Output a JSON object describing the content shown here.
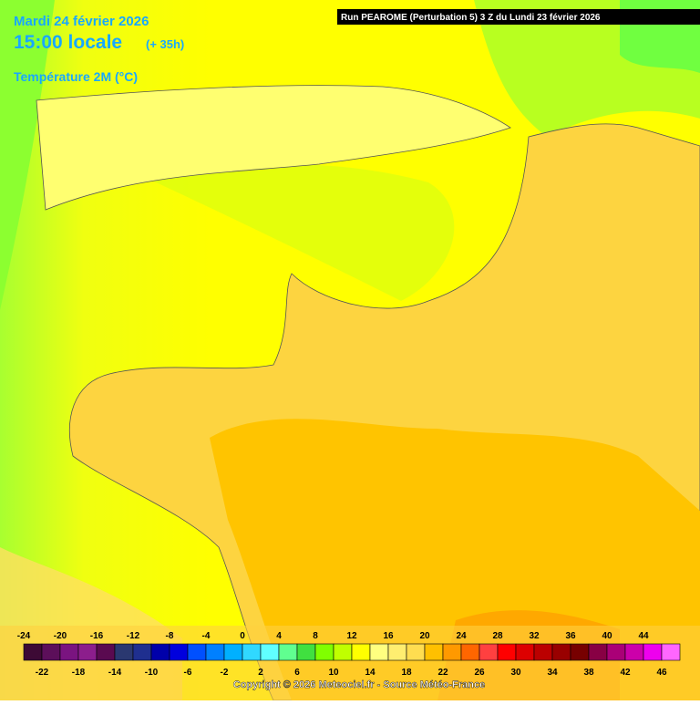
{
  "header": {
    "date": "Mardi 24 février 2026",
    "time": "15:00 locale",
    "lead": "(+ 35h)",
    "field": "Température 2M (°C)",
    "run": "Run PEAROME (Perturbation 5) 3 Z du Lundi 23 février 2026"
  },
  "legend": {
    "ticks": [
      -24,
      -22,
      -20,
      -18,
      -16,
      -14,
      -12,
      -10,
      -8,
      -6,
      -4,
      -2,
      0,
      2,
      4,
      6,
      8,
      10,
      12,
      14,
      16,
      18,
      20,
      22,
      24,
      26,
      28,
      30,
      32,
      34,
      36,
      38,
      40,
      42,
      44,
      46
    ],
    "colors": [
      "#3d0a35",
      "#5c0f5a",
      "#7a1480",
      "#8c1e8c",
      "#5a0a50",
      "#2a3870",
      "#1f2f8f",
      "#0000aa",
      "#0000dd",
      "#0050ff",
      "#0080ff",
      "#00b0ff",
      "#30d8ff",
      "#60ffff",
      "#60ff90",
      "#40e040",
      "#80ff00",
      "#c0ff00",
      "#ffff00",
      "#ffff80",
      "#ffee70",
      "#ffdd50",
      "#ffc000",
      "#ff9900",
      "#ff6600",
      "#ff4040",
      "#ff0000",
      "#dd0000",
      "#bb0000",
      "#990000",
      "#770000",
      "#880044",
      "#aa0077",
      "#cc00aa",
      "#ee00ee",
      "#ff66ff"
    ]
  },
  "footer": {
    "copyright": "Copyright © 2026 Meteociel.fr - Source Météo-France"
  }
}
